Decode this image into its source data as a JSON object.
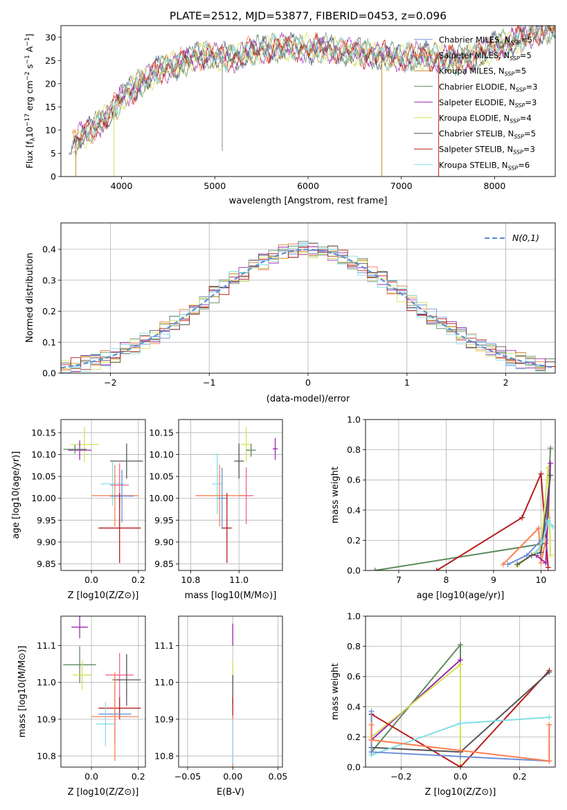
{
  "figure": {
    "title": "PLATE=2512, MJD=53877, FIBERID=0453, z=0.096"
  },
  "series_colors": {
    "Chabrier MILES": "#6c8fd6",
    "Salpeter MILES": "#ff7f50",
    "Kroupa MILES": "#c08a2b",
    "Chabrier ELODIE": "#5e8a5e",
    "Salpeter ELODIE": "#9c27b0",
    "Kroupa ELODIE": "#d4e157",
    "Chabrier STELIB": "#555555",
    "Salpeter STELIB": "#b71c1c",
    "Kroupa STELIB": "#80deea",
    "Extra pink": "#f06292"
  },
  "chart_data": [
    {
      "id": "spectrum",
      "type": "line",
      "title": "PLATE=2512, MJD=53877, FIBERID=0453, z=0.096",
      "xlabel": "wavelength [Angstrom, rest frame]",
      "ylabel": "Flux [f",
      "ylabel_parts": [
        "Flux [f",
        "λ",
        "10",
        "−17",
        " erg cm",
        "−2",
        " s",
        "−1",
        " A",
        "−1",
        "]"
      ],
      "xlim": [
        3350,
        8650
      ],
      "ylim": [
        0,
        32.5
      ],
      "xticks": [
        4000,
        5000,
        6000,
        7000,
        8000
      ],
      "yticks": [
        0,
        5,
        10,
        15,
        20,
        25,
        30
      ],
      "grid": false,
      "legend_position": "top-right",
      "legend": [
        {
          "name": "Chabrier MILES",
          "nssp": "5"
        },
        {
          "name": "Salpeter MILES",
          "nssp": "5"
        },
        {
          "name": "Kroupa MILES",
          "nssp": "5"
        },
        {
          "name": "Chabrier ELODIE",
          "nssp": "3"
        },
        {
          "name": "Salpeter ELODIE",
          "nssp": "3"
        },
        {
          "name": "Kroupa ELODIE",
          "nssp": "4"
        },
        {
          "name": "Chabrier STELIB",
          "nssp": "5"
        },
        {
          "name": "Salpeter STELIB",
          "nssp": "3"
        },
        {
          "name": "Kroupa STELIB",
          "nssp": "6"
        }
      ],
      "continuum": {
        "x": [
          3450,
          3600,
          3800,
          3900,
          4000,
          4200,
          4400,
          4600,
          4800,
          5000,
          5200,
          5400,
          5600,
          5800,
          6000,
          6200,
          6400,
          6600,
          6800,
          7000,
          7200,
          7400,
          7600,
          7800,
          8000,
          8200,
          8400,
          8650
        ],
        "y": [
          7,
          9,
          12,
          14,
          17,
          20,
          23,
          24,
          26,
          26,
          25.5,
          27,
          27.5,
          28,
          27.5,
          27.5,
          27,
          26.5,
          26,
          25.5,
          26,
          25.5,
          25,
          26,
          28,
          29,
          31,
          32
        ]
      }
    },
    {
      "id": "residuals",
      "type": "step",
      "xlabel": "(data-model)/error",
      "ylabel": "Normed distribution",
      "xlim": [
        -2.5,
        2.5
      ],
      "ylim": [
        0,
        0.485
      ],
      "xticks": [
        -2,
        -1,
        0,
        1,
        2
      ],
      "yticks": [
        0.0,
        0.1,
        0.2,
        0.3,
        0.4
      ],
      "grid": true,
      "legend_position": "top-right",
      "legend": [
        {
          "name": "N(0,1)"
        }
      ],
      "bin_width": 0.1
    },
    {
      "id": "age-vs-Z",
      "type": "errorbar",
      "xlabel": "Z [log10(Z/Z⊙)]",
      "ylabel": "age  [log10(age/yr)]",
      "xlim": [
        -0.13,
        0.23
      ],
      "ylim": [
        9.835,
        10.18
      ],
      "xticks": [
        0.0,
        0.2
      ],
      "yticks": [
        9.85,
        9.9,
        9.95,
        10.0,
        10.05,
        10.1,
        10.15
      ],
      "grid": true,
      "points": [
        {
          "series": "Kroupa ELODIE",
          "x": -0.03,
          "y": 10.123,
          "xerr": 0.06,
          "yerr": 0.04
        },
        {
          "series": "Salpeter ELODIE",
          "x": -0.05,
          "y": 10.11,
          "xerr": 0.05,
          "yerr": 0.022
        },
        {
          "series": "Chabrier ELODIE",
          "x": -0.07,
          "y": 10.112,
          "xerr": 0.05,
          "yerr": 0.01
        },
        {
          "series": "Chabrier STELIB",
          "x": 0.15,
          "y": 10.085,
          "xerr": 0.07,
          "yerr": 0.04
        },
        {
          "series": "Kroupa STELIB",
          "x": 0.09,
          "y": 10.033,
          "xerr": 0.05,
          "yerr": 0.05
        },
        {
          "series": "Extra pink",
          "x": 0.12,
          "y": 10.03,
          "xerr": 0.04,
          "yerr": 0.05
        },
        {
          "series": "Salpeter MILES",
          "x": 0.1,
          "y": 10.006,
          "xerr": 0.1,
          "yerr": 0.07
        },
        {
          "series": "Chabrier MILES",
          "x": 0.13,
          "y": 10.005,
          "xerr": 0.05,
          "yerr": 0.06
        },
        {
          "series": "Salpeter STELIB",
          "x": 0.12,
          "y": 9.932,
          "xerr": 0.09,
          "yerr": 0.08
        }
      ]
    },
    {
      "id": "age-vs-mass",
      "type": "errorbar",
      "xlabel": "mass [log10(M/M⊙)]",
      "ylabel": "",
      "xlim": [
        10.75,
        11.18
      ],
      "ylim": [
        9.835,
        10.18
      ],
      "xticks": [
        10.8,
        11.0
      ],
      "yticks": [
        9.85,
        9.9,
        9.95,
        10.0,
        10.05,
        10.1,
        10.15
      ],
      "grid": true,
      "points": [
        {
          "series": "Kroupa ELODIE",
          "x": 11.03,
          "y": 10.123,
          "xerr": 0.02,
          "yerr": 0.04
        },
        {
          "series": "Salpeter ELODIE",
          "x": 11.15,
          "y": 10.113,
          "xerr": 0.01,
          "yerr": 0.025
        },
        {
          "series": "Chabrier ELODIE",
          "x": 11.05,
          "y": 10.11,
          "xerr": 0.02,
          "yerr": 0.015
        },
        {
          "series": "Chabrier STELIB",
          "x": 11.0,
          "y": 10.085,
          "xerr": 0.02,
          "yerr": 0.04
        },
        {
          "series": "Kroupa STELIB",
          "x": 10.91,
          "y": 10.033,
          "xerr": 0.02,
          "yerr": 0.07
        },
        {
          "series": "Extra pink",
          "x": 11.03,
          "y": 10.006,
          "xerr": 0.03,
          "yerr": 0.065
        },
        {
          "series": "Salpeter MILES",
          "x": 10.92,
          "y": 10.006,
          "xerr": 0.1,
          "yerr": 0.07
        },
        {
          "series": "Chabrier MILES",
          "x": 10.93,
          "y": 10.0,
          "xerr": 0.02,
          "yerr": 0.07
        },
        {
          "series": "Salpeter STELIB",
          "x": 10.95,
          "y": 9.932,
          "xerr": 0.02,
          "yerr": 0.08
        }
      ]
    },
    {
      "id": "weight-vs-age",
      "type": "line",
      "xlabel": "age  [log10(age/yr)]",
      "ylabel": "mass weight",
      "xlim": [
        6.3,
        10.3
      ],
      "ylim": [
        0,
        1.0
      ],
      "xticks": [
        7,
        8,
        9,
        10
      ],
      "yticks": [
        0.0,
        0.2,
        0.4,
        0.6,
        0.8,
        1.0
      ],
      "grid": true,
      "series": [
        {
          "name": "Chabrier ELODIE",
          "x": [
            6.5,
            10.1,
            10.2
          ],
          "y": [
            0.0,
            0.18,
            0.81
          ]
        },
        {
          "name": "Salpeter STELIB",
          "x": [
            7.8,
            9.6,
            10.0,
            10.15
          ],
          "y": [
            0.0,
            0.35,
            0.64,
            0.02
          ]
        },
        {
          "name": "Salpeter MILES",
          "x": [
            9.2,
            9.95,
            10.0,
            10.1
          ],
          "y": [
            0.04,
            0.28,
            0.05,
            0.2
          ]
        },
        {
          "name": "Chabrier MILES",
          "x": [
            9.3,
            9.7,
            10.0,
            10.15
          ],
          "y": [
            0.04,
            0.1,
            0.2,
            0.35
          ]
        },
        {
          "name": "Kroupa ELODIE",
          "x": [
            9.5,
            10.0,
            10.15,
            10.2
          ],
          "y": [
            0.03,
            0.15,
            0.68,
            0.1
          ]
        },
        {
          "name": "Salpeter ELODIE",
          "x": [
            9.9,
            10.1,
            10.2
          ],
          "y": [
            0.1,
            0.05,
            0.71
          ]
        },
        {
          "name": "Chabrier STELIB",
          "x": [
            9.5,
            9.8,
            10.0,
            10.2
          ],
          "y": [
            0.04,
            0.1,
            0.12,
            0.63
          ]
        },
        {
          "name": "Kroupa STELIB",
          "x": [
            9.9,
            10.05,
            10.15,
            10.25
          ],
          "y": [
            0.12,
            0.2,
            0.33,
            0.29
          ]
        }
      ]
    },
    {
      "id": "mass-vs-Z",
      "type": "errorbar",
      "xlabel": "Z [log10(Z/Z⊙)]",
      "ylabel": "mass [log10(M/M⊙)]",
      "xlim": [
        -0.13,
        0.23
      ],
      "ylim": [
        10.77,
        11.18
      ],
      "xticks": [
        0.0,
        0.2
      ],
      "yticks": [
        10.8,
        10.9,
        11.0,
        11.1
      ],
      "grid": true,
      "points": [
        {
          "series": "Salpeter ELODIE",
          "x": -0.05,
          "y": 11.15,
          "xerr": 0.035,
          "yerr": 0.03
        },
        {
          "series": "Chabrier ELODIE",
          "x": -0.05,
          "y": 11.048,
          "xerr": 0.07,
          "yerr": 0.05
        },
        {
          "series": "Kroupa ELODIE",
          "x": -0.04,
          "y": 11.02,
          "xerr": 0.04,
          "yerr": 0.04
        },
        {
          "series": "Extra pink",
          "x": 0.12,
          "y": 11.02,
          "xerr": 0.06,
          "yerr": 0.06
        },
        {
          "series": "Chabrier STELIB",
          "x": 0.15,
          "y": 11.007,
          "xerr": 0.06,
          "yerr": 0.07
        },
        {
          "series": "Salpeter STELIB",
          "x": 0.12,
          "y": 10.93,
          "xerr": 0.09,
          "yerr": 0.03
        },
        {
          "series": "Chabrier MILES",
          "x": 0.1,
          "y": 10.914,
          "xerr": 0.07,
          "yerr": 0.08
        },
        {
          "series": "Salpeter MILES",
          "x": 0.1,
          "y": 10.907,
          "xerr": 0.1,
          "yerr": 0.12
        },
        {
          "series": "Kroupa STELIB",
          "x": 0.06,
          "y": 10.887,
          "xerr": 0.04,
          "yerr": 0.06
        }
      ]
    },
    {
      "id": "mass-vs-ebv",
      "type": "errorbar",
      "xlabel": "E(B-V)",
      "ylabel": "",
      "xlim": [
        -0.06,
        0.055
      ],
      "ylim": [
        10.77,
        11.18
      ],
      "xticks": [
        -0.05,
        0.0,
        0.05
      ],
      "yticks": [
        10.8,
        10.9,
        11.0,
        11.1
      ],
      "grid": true,
      "points": [
        {
          "series": "Salpeter ELODIE",
          "x": 0.0,
          "y": 11.13,
          "xerr": 0.0,
          "yerr": 0.03
        },
        {
          "series": "Kroupa ELODIE",
          "x": 0.0,
          "y": 11.02,
          "xerr": 0.0,
          "yerr": 0.04
        },
        {
          "series": "Chabrier STELIB",
          "x": 0.0,
          "y": 10.98,
          "xerr": 0.0,
          "yerr": 0.04
        },
        {
          "series": "Salpeter STELIB",
          "x": 0.0,
          "y": 10.93,
          "xerr": 0.0,
          "yerr": 0.03
        },
        {
          "series": "Salpeter MILES",
          "x": 0.0,
          "y": 10.84,
          "xerr": 0.0,
          "yerr": 0.07
        },
        {
          "series": "Kroupa STELIB",
          "x": 0.0,
          "y": 10.84,
          "xerr": 0.0,
          "yerr": 0.06
        }
      ]
    },
    {
      "id": "weight-vs-Z",
      "type": "line",
      "xlabel": "Z [log10(Z/Z⊙)]",
      "ylabel": "mass weight",
      "xlim": [
        -0.32,
        0.32
      ],
      "ylim": [
        0,
        1.0
      ],
      "xticks": [
        -0.2,
        0.0,
        0.2
      ],
      "yticks": [
        0.0,
        0.2,
        0.4,
        0.6,
        0.8,
        1.0
      ],
      "grid": true,
      "series": [
        {
          "name": "Chabrier ELODIE",
          "x": [
            -0.3,
            0.0,
            0.0
          ],
          "y": [
            0.1,
            0.81,
            0.1
          ]
        },
        {
          "name": "Salpeter ELODIE",
          "x": [
            -0.3,
            0.0,
            0.0
          ],
          "y": [
            0.18,
            0.71,
            0.1
          ]
        },
        {
          "name": "Kroupa ELODIE",
          "x": [
            -0.3,
            0.0,
            0.0
          ],
          "y": [
            0.2,
            0.68,
            0.0
          ]
        },
        {
          "name": "Salpeter STELIB",
          "x": [
            -0.3,
            0.0,
            0.3
          ],
          "y": [
            0.35,
            0.0,
            0.64
          ]
        },
        {
          "name": "Chabrier STELIB",
          "x": [
            -0.3,
            0.0,
            0.3
          ],
          "y": [
            0.13,
            0.1,
            0.63
          ]
        },
        {
          "name": "Kroupa STELIB",
          "x": [
            -0.3,
            0.0,
            0.3
          ],
          "y": [
            0.08,
            0.29,
            0.33
          ]
        },
        {
          "name": "Chabrier MILES",
          "x": [
            -0.3,
            -0.3,
            0.0,
            0.3
          ],
          "y": [
            0.37,
            0.1,
            0.07,
            0.04
          ]
        },
        {
          "name": "Salpeter MILES",
          "x": [
            -0.3,
            -0.3,
            0.0,
            0.3,
            0.3
          ],
          "y": [
            0.28,
            0.18,
            0.11,
            0.04,
            0.28
          ]
        }
      ]
    }
  ]
}
